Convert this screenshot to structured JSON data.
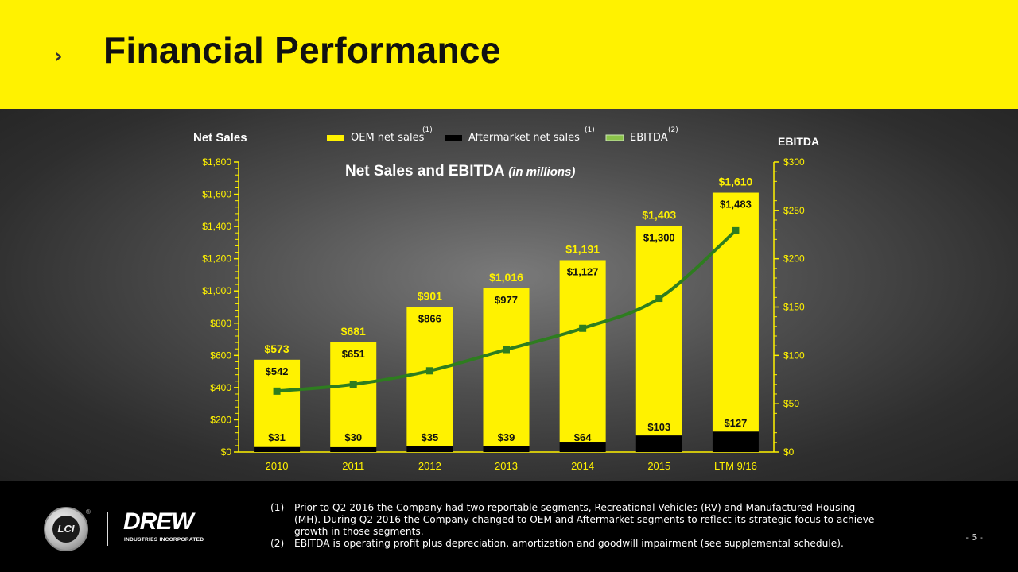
{
  "header": {
    "title": "Financial Performance",
    "chevron": "›"
  },
  "chart_data": {
    "type": "bar",
    "title": "Net Sales and EBITDA",
    "title_suffix": "(in millions)",
    "left_axis_title": "Net Sales",
    "right_axis_title": "EBITDA",
    "categories": [
      "2010",
      "2011",
      "2012",
      "2013",
      "2014",
      "2015",
      "LTM 9/16"
    ],
    "series": [
      {
        "name": "OEM net sales",
        "superscript": "(1)",
        "color": "#fff200",
        "values": [
          542,
          651,
          866,
          977,
          1127,
          1300,
          1483
        ],
        "labels": [
          "$542",
          "$651",
          "$866",
          "$977",
          "$1,127",
          "$1,300",
          "$1,483"
        ]
      },
      {
        "name": "Aftermarket net sales",
        "superscript": "(1)",
        "color": "#000000",
        "values": [
          31,
          30,
          35,
          39,
          64,
          103,
          127
        ],
        "labels": [
          "$31",
          "$30",
          "$35",
          "$39",
          "$64",
          "$103",
          "$127"
        ]
      },
      {
        "name": "EBITDA",
        "superscript": "(2)",
        "color": "#2e7d1f",
        "axis": "right",
        "type": "line",
        "values": [
          63,
          70,
          84,
          106,
          128,
          159,
          229
        ]
      }
    ],
    "totals": {
      "values": [
        573,
        681,
        901,
        1016,
        1191,
        1403,
        1610
      ],
      "labels": [
        "$573",
        "$681",
        "$901",
        "$1,016",
        "$1,191",
        "$1,403",
        "$1,610"
      ]
    },
    "left_axis": {
      "min": 0,
      "max": 1800,
      "ticks": [
        0,
        200,
        400,
        600,
        800,
        1000,
        1200,
        1400,
        1600,
        1800
      ],
      "tick_labels": [
        "$0",
        "$200",
        "$400",
        "$600",
        "$800",
        "$1,000",
        "$1,200",
        "$1,400",
        "$1,600",
        "$1,800"
      ]
    },
    "right_axis": {
      "min": 0,
      "max": 300,
      "ticks": [
        0,
        50,
        100,
        150,
        200,
        250,
        300
      ],
      "tick_labels": [
        "$0",
        "$50",
        "$100",
        "$150",
        "$200",
        "$250",
        "$300"
      ]
    }
  },
  "footnotes": [
    {
      "num": "(1)",
      "text": "Prior to Q2 2016 the Company had two reportable segments, Recreational Vehicles (RV) and Manufactured Housing (MH). During Q2 2016 the Company changed to OEM and Aftermarket segments to reflect its strategic focus to achieve growth in those segments."
    },
    {
      "num": "(2)",
      "text": "EBITDA is operating profit plus depreciation, amortization and goodwill impairment (see supplemental schedule)."
    }
  ],
  "page_number": "- 5 -",
  "logos": {
    "lci": "LCI",
    "drew": "DREW",
    "drew_sub": "INDUSTRIES INCORPORATED",
    "reg": "®"
  }
}
